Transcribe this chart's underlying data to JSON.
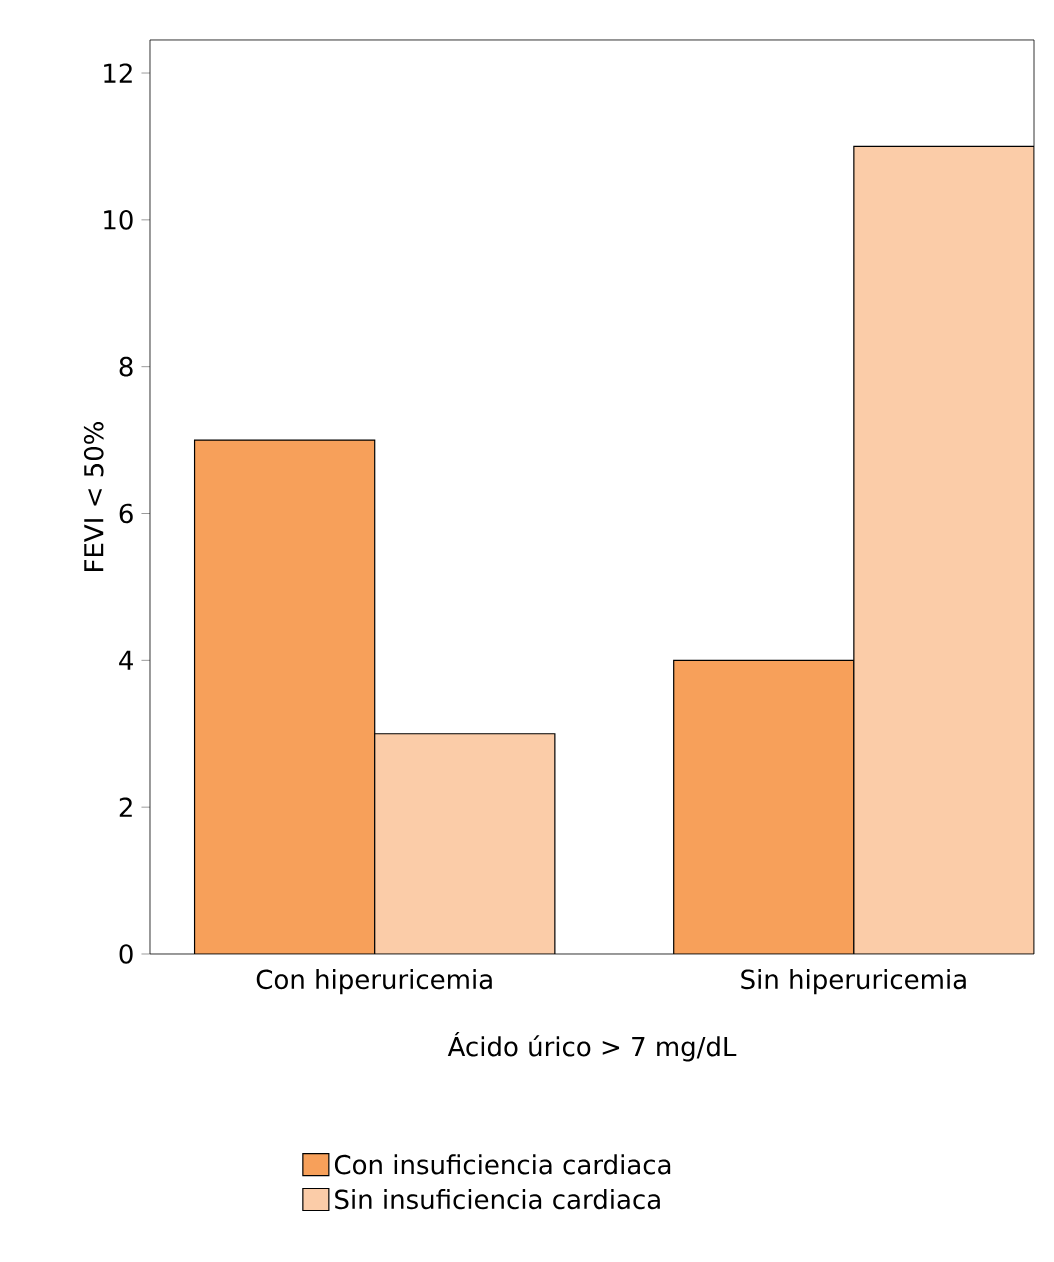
{
  "chart_data": {
    "type": "bar",
    "xlabel": "Ácido úrico > 7 mg/dL",
    "ylabel": "FEVI < 50%",
    "categories": [
      "Con hiperuricemia",
      "Sin hiperuricemia"
    ],
    "series": [
      {
        "name": "Con insuficiencia cardiaca",
        "color": "#f7a05a",
        "values": [
          7,
          4
        ]
      },
      {
        "name": "Sin insuficiencia cardiaca",
        "color": "#fbcca8",
        "values": [
          3,
          11
        ]
      }
    ],
    "ylim": [
      0,
      12.45
    ],
    "yticks": [
      0,
      2,
      4,
      6,
      8,
      10,
      12
    ],
    "legend": "bottom",
    "grid": false
  }
}
